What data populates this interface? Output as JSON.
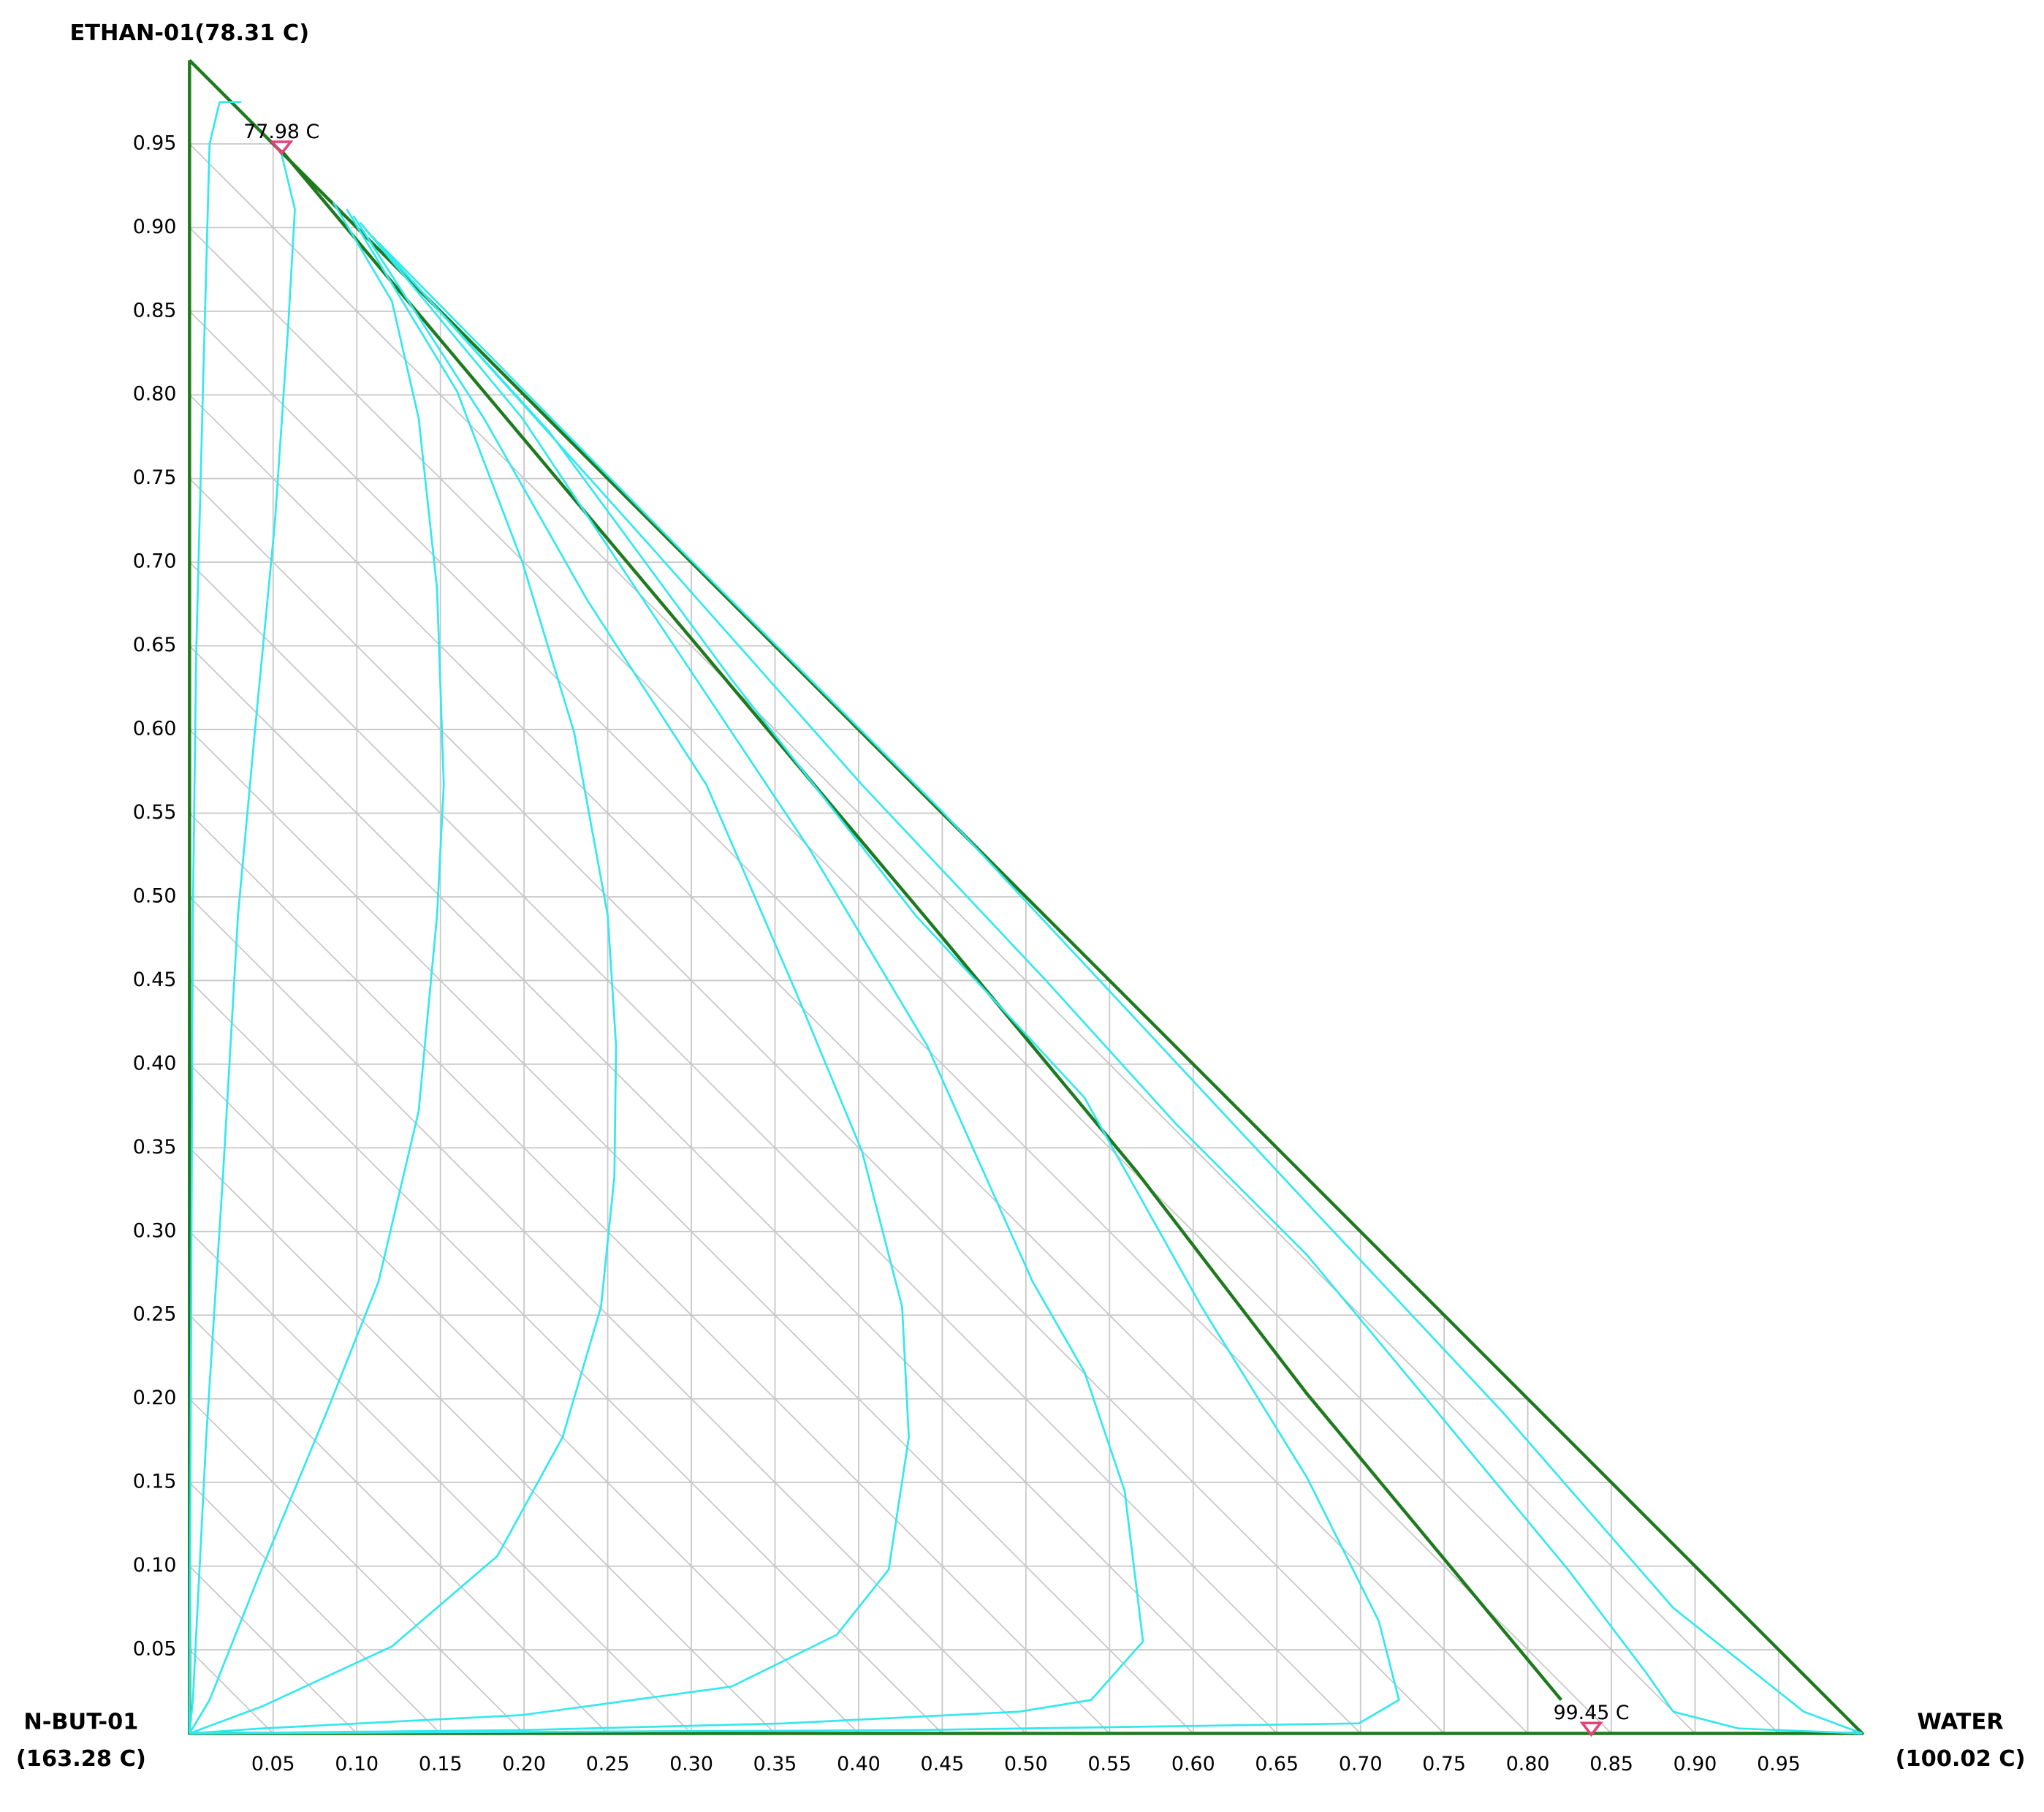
{
  "chart_data": {
    "type": "ternary",
    "xlim": [
      0,
      1
    ],
    "ylim": [
      0,
      1
    ],
    "xticks": [
      0.05,
      {
        "value": 0.1,
        "label": "0.10"
      },
      0.15,
      {
        "value": 0.2,
        "label": "0.20"
      },
      0.25,
      {
        "value": 0.3,
        "label": "0.30"
      },
      0.35,
      {
        "value": 0.4,
        "label": "0.40"
      },
      0.45,
      {
        "value": 0.5,
        "label": "0.50"
      },
      0.55,
      {
        "value": 0.6,
        "label": "0.60"
      },
      0.65,
      {
        "value": 0.7,
        "label": "0.70"
      },
      0.75,
      {
        "value": 0.8,
        "label": "0.80"
      },
      0.85,
      {
        "value": 0.9,
        "label": "0.90"
      },
      0.95
    ],
    "yticks": [
      0.05,
      {
        "value": 0.1,
        "label": "0.10"
      },
      0.15,
      {
        "value": 0.2,
        "label": "0.20"
      },
      0.25,
      {
        "value": 0.3,
        "label": "0.30"
      },
      0.35,
      {
        "value": 0.4,
        "label": "0.40"
      },
      0.45,
      {
        "value": 0.5,
        "label": "0.50"
      },
      0.55,
      {
        "value": 0.6,
        "label": "0.60"
      },
      0.65,
      {
        "value": 0.7,
        "label": "0.70"
      },
      0.75,
      {
        "value": 0.8,
        "label": "0.80"
      },
      0.85,
      {
        "value": 0.9,
        "label": "0.90"
      },
      0.95
    ],
    "grid": true,
    "vertex_labels": {
      "top": [
        "ETHAN-01(78.31 C)"
      ],
      "left": [
        "N-BUT-01",
        "(163.28 C)"
      ],
      "right": [
        "WATER",
        "(100.02 C)"
      ]
    },
    "annotations": [
      {
        "text": "77.98 C",
        "x": 0.055,
        "y": 0.945,
        "color": "#e8407a"
      },
      {
        "text": "99.45 C",
        "x": 0.838,
        "y": 0,
        "color": "#e8407a"
      }
    ],
    "series": [
      {
        "color": "#1f7a1f",
        "width": 2.5,
        "x": [
          0,
          0,
          1,
          0
        ],
        "values": [
          1,
          0,
          0,
          1
        ]
      },
      {
        "color": "#1f7a1f",
        "width": 2.5,
        "x": [
          0.055,
          0.449,
          0.566,
          0.668,
          0.82
        ],
        "values": [
          0.946,
          0.477,
          0.336,
          0.203,
          0.02
        ]
      },
      {
        "color": "#33e8ee",
        "width": 1.5,
        "x": [
          0.055,
          0.063,
          0.059,
          0.051,
          0.039,
          0.029,
          0.02,
          0.01,
          0.002,
          0
        ],
        "values": [
          0.944,
          0.911,
          0.841,
          0.723,
          0.598,
          0.489,
          0.333,
          0.177,
          0.02,
          0
        ]
      },
      {
        "color": "#33e8ee",
        "width": 1.5,
        "x": [
          0.031,
          0.018,
          0.012,
          0.008,
          0.004,
          0.002,
          0.001,
          0
        ],
        "values": [
          0.975,
          0.975,
          0.95,
          0.802,
          0.645,
          0.489,
          0.255,
          0
        ]
      },
      {
        "color": "#33e8ee",
        "width": 1.5,
        "x": [
          0.086,
          0.121,
          0.137,
          0.148,
          0.152,
          0.148,
          0.137,
          0.113,
          0.082,
          0.043,
          0.012,
          0
        ],
        "values": [
          0.915,
          0.856,
          0.786,
          0.684,
          0.567,
          0.489,
          0.372,
          0.27,
          0.192,
          0.098,
          0.02,
          0
        ]
      },
      {
        "color": "#33e8ee",
        "width": 1.5,
        "x": [
          0.094,
          0.16,
          0.199,
          0.23,
          0.25,
          0.255,
          0.254,
          0.246,
          0.223,
          0.184,
          0.121,
          0.043,
          0
        ],
        "values": [
          0.911,
          0.802,
          0.7,
          0.598,
          0.489,
          0.411,
          0.333,
          0.255,
          0.177,
          0.106,
          0.052,
          0.016,
          0
        ]
      },
      {
        "color": "#33e8ee",
        "width": 1.5,
        "x": [
          0.098,
          0.176,
          0.238,
          0.309,
          0.363,
          0.402,
          0.426,
          0.43,
          0.418,
          0.387,
          0.324,
          0.199,
          0.043,
          0
        ],
        "values": [
          0.907,
          0.786,
          0.677,
          0.567,
          0.442,
          0.348,
          0.255,
          0.177,
          0.098,
          0.059,
          0.028,
          0.011,
          0.003,
          0
        ]
      },
      {
        "color": "#33e8ee",
        "width": 1.5,
        "x": [
          0.102,
          0.199,
          0.293,
          0.371,
          0.441,
          0.504,
          0.535,
          0.559,
          0.57,
          0.539,
          0.496,
          0.355,
          0.199,
          0
        ],
        "values": [
          0.903,
          0.786,
          0.645,
          0.528,
          0.411,
          0.27,
          0.216,
          0.145,
          0.055,
          0.02,
          0.013,
          0.006,
          0.002,
          0
        ]
      },
      {
        "color": "#33e8ee",
        "width": 1.5,
        "x": [
          0.105,
          0.215,
          0.324,
          0.434,
          0.535,
          0.605,
          0.668,
          0.711,
          0.723,
          0.699,
          0.434,
          0
        ],
        "values": [
          0.899,
          0.778,
          0.63,
          0.489,
          0.38,
          0.255,
          0.153,
          0.067,
          0.02,
          0.006,
          0.002,
          0
        ]
      },
      {
        "color": "#33e8ee",
        "width": 1.5,
        "x": [
          0.109,
          0.277,
          0.402,
          0.512,
          0.59,
          0.668,
          0.746,
          0.824,
          0.871,
          0.887,
          0.926,
          1
        ],
        "values": [
          0.895,
          0.708,
          0.567,
          0.45,
          0.364,
          0.286,
          0.192,
          0.098,
          0.036,
          0.013,
          0.003,
          0
        ]
      },
      {
        "color": "#33e8ee",
        "width": 1.5,
        "x": [
          0.113,
          0.293,
          0.449,
          0.559,
          0.668,
          0.785,
          0.887,
          0.965,
          1
        ],
        "values": [
          0.891,
          0.708,
          0.552,
          0.434,
          0.317,
          0.192,
          0.075,
          0.013,
          0
        ]
      }
    ]
  }
}
